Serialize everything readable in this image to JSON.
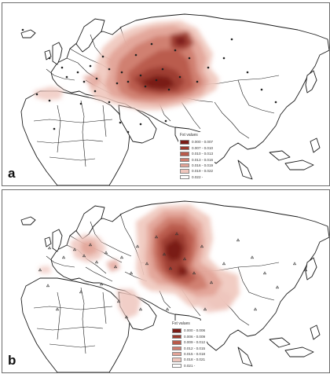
{
  "panels": [
    {
      "label": "a",
      "legend": {
        "title": "Fst values",
        "entries": [
          {
            "range": "0.000 - 0.007",
            "color": "#7a1c17"
          },
          {
            "range": "0.007 - 0.010",
            "color": "#9c3a2e"
          },
          {
            "range": "0.010 - 0.013",
            "color": "#b85a4b"
          },
          {
            "range": "0.013 - 0.016",
            "color": "#cf7d6f"
          },
          {
            "range": "0.016 - 0.019",
            "color": "#e2a397"
          },
          {
            "range": "0.019 - 0.022",
            "color": "#efc6bd"
          },
          {
            "range": "0.022 -",
            "color": "#ffffff"
          }
        ]
      }
    },
    {
      "label": "b",
      "legend": {
        "title": "Fst values",
        "entries": [
          {
            "range": "0.000 - 0.006",
            "color": "#7a1c17"
          },
          {
            "range": "0.006 - 0.009",
            "color": "#9c3a2e"
          },
          {
            "range": "0.009 - 0.012",
            "color": "#b85a4b"
          },
          {
            "range": "0.012 - 0.015",
            "color": "#cf7d6f"
          },
          {
            "range": "0.015 - 0.018",
            "color": "#e2a397"
          },
          {
            "range": "0.018 - 0.021",
            "color": "#efc6bd"
          },
          {
            "range": "0.021 -",
            "color": "#ffffff"
          }
        ]
      }
    }
  ],
  "colors": {
    "border": "#6d6d6d",
    "coast": "#1a1a1a",
    "heat_dark": "#7a1c17",
    "heat_light": "#efc6bd"
  }
}
